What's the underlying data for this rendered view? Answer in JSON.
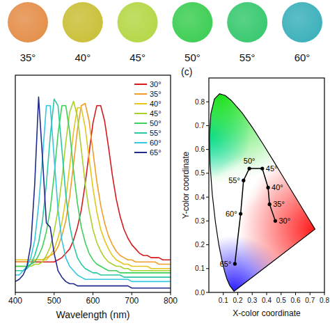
{
  "swatches": [
    {
      "label": "35°",
      "color": "#e5914e"
    },
    {
      "label": "40°",
      "color": "#cbc13d"
    },
    {
      "label": "45°",
      "color": "#b6d84a"
    },
    {
      "label": "50°",
      "color": "#41cf57"
    },
    {
      "label": "55°",
      "color": "#3cca72"
    },
    {
      "label": "60°",
      "color": "#40b2bc"
    }
  ],
  "chart_data": [
    {
      "type": "line",
      "xlabel": "Wavelength (nm)",
      "x": [
        400,
        410,
        420,
        430,
        440,
        450,
        460,
        470,
        480,
        490,
        500,
        510,
        520,
        530,
        540,
        550,
        560,
        570,
        580,
        590,
        600,
        610,
        620,
        630,
        640,
        650,
        660,
        670,
        680,
        690,
        700,
        710,
        720,
        730,
        740,
        750,
        760,
        770,
        780,
        790,
        800
      ],
      "xlim": [
        400,
        800
      ],
      "xticks": [
        400,
        500,
        600,
        700,
        800
      ],
      "ylim": [
        0,
        1
      ],
      "tick_labels": "x",
      "legend": "upper right",
      "series": [
        {
          "name": "30°",
          "color": "#d7191c",
          "values": [
            0.14,
            0.14,
            0.14,
            0.14,
            0.14,
            0.14,
            0.14,
            0.14,
            0.14,
            0.14,
            0.14,
            0.15,
            0.16,
            0.18,
            0.2,
            0.24,
            0.3,
            0.38,
            0.5,
            0.64,
            0.78,
            0.86,
            0.86,
            0.79,
            0.67,
            0.54,
            0.43,
            0.35,
            0.29,
            0.25,
            0.22,
            0.2,
            0.18,
            0.17,
            0.17,
            0.16,
            0.16,
            0.16,
            0.15,
            0.15,
            0.15
          ]
        },
        {
          "name": "35°",
          "color": "#f39c2a",
          "values": [
            0.14,
            0.14,
            0.14,
            0.14,
            0.14,
            0.15,
            0.15,
            0.15,
            0.16,
            0.17,
            0.18,
            0.21,
            0.26,
            0.33,
            0.44,
            0.59,
            0.75,
            0.86,
            0.87,
            0.79,
            0.65,
            0.51,
            0.4,
            0.32,
            0.26,
            0.22,
            0.19,
            0.17,
            0.16,
            0.15,
            0.15,
            0.14,
            0.14,
            0.14,
            0.14,
            0.14,
            0.14,
            0.13,
            0.13,
            0.13,
            0.13
          ]
        },
        {
          "name": "40°",
          "color": "#e3c51b",
          "values": [
            0.15,
            0.15,
            0.15,
            0.15,
            0.15,
            0.15,
            0.15,
            0.15,
            0.15,
            0.17,
            0.2,
            0.25,
            0.32,
            0.43,
            0.58,
            0.74,
            0.85,
            0.85,
            0.76,
            0.62,
            0.48,
            0.37,
            0.29,
            0.24,
            0.2,
            0.17,
            0.15,
            0.14,
            0.13,
            0.13,
            0.12,
            0.12,
            0.12,
            0.12,
            0.12,
            0.11,
            0.11,
            0.11,
            0.11,
            0.11,
            0.11
          ]
        },
        {
          "name": "45°",
          "color": "#a8d12a",
          "values": [
            0.12,
            0.12,
            0.12,
            0.12,
            0.12,
            0.13,
            0.13,
            0.14,
            0.17,
            0.21,
            0.28,
            0.38,
            0.52,
            0.69,
            0.83,
            0.88,
            0.81,
            0.66,
            0.5,
            0.38,
            0.29,
            0.23,
            0.19,
            0.16,
            0.14,
            0.13,
            0.12,
            0.12,
            0.11,
            0.11,
            0.1,
            0.1,
            0.1,
            0.1,
            0.1,
            0.1,
            0.1,
            0.1,
            0.1,
            0.1,
            0.1
          ]
        },
        {
          "name": "50°",
          "color": "#3fcf5a",
          "values": [
            0.12,
            0.12,
            0.12,
            0.12,
            0.13,
            0.14,
            0.17,
            0.21,
            0.28,
            0.38,
            0.54,
            0.73,
            0.86,
            0.86,
            0.74,
            0.56,
            0.41,
            0.3,
            0.23,
            0.18,
            0.15,
            0.13,
            0.12,
            0.11,
            0.1,
            0.1,
            0.1,
            0.09,
            0.09,
            0.09,
            0.09,
            0.09,
            0.09,
            0.09,
            0.09,
            0.09,
            0.09,
            0.09,
            0.09,
            0.09,
            0.09
          ]
        },
        {
          "name": "55°",
          "color": "#28c9a0",
          "values": [
            0.1,
            0.1,
            0.1,
            0.11,
            0.13,
            0.17,
            0.23,
            0.33,
            0.5,
            0.72,
            0.89,
            0.86,
            0.66,
            0.45,
            0.31,
            0.22,
            0.16,
            0.13,
            0.11,
            0.1,
            0.09,
            0.09,
            0.08,
            0.08,
            0.08,
            0.08,
            0.08,
            0.08,
            0.07,
            0.07,
            0.07,
            0.07,
            0.07,
            0.07,
            0.07,
            0.07,
            0.07,
            0.07,
            0.07,
            0.07,
            0.07
          ]
        },
        {
          "name": "60°",
          "color": "#35c6e0",
          "values": [
            0.08,
            0.08,
            0.1,
            0.12,
            0.16,
            0.24,
            0.4,
            0.62,
            0.86,
            0.86,
            0.62,
            0.38,
            0.24,
            0.16,
            0.12,
            0.1,
            0.08,
            0.07,
            0.06,
            0.06,
            0.06,
            0.06,
            0.06,
            0.06,
            0.06,
            0.06,
            0.06,
            0.06,
            0.06,
            0.06,
            0.05,
            0.05,
            0.05,
            0.05,
            0.05,
            0.05,
            0.05,
            0.05,
            0.05,
            0.05,
            0.05
          ]
        },
        {
          "name": "65°",
          "color": "#1f2a8c",
          "values": [
            0.05,
            0.06,
            0.08,
            0.12,
            0.22,
            0.5,
            0.9,
            0.62,
            0.32,
            0.3,
            0.18,
            0.1,
            0.07,
            0.05,
            0.04,
            0.04,
            0.03,
            0.03,
            0.03,
            0.03,
            0.03,
            0.03,
            0.03,
            0.03,
            0.03,
            0.03,
            0.03,
            0.03,
            0.03,
            0.03,
            0.02,
            0.02,
            0.02,
            0.02,
            0.02,
            0.02,
            0.02,
            0.02,
            0.02,
            0.02,
            0.02
          ]
        }
      ]
    },
    {
      "type": "line",
      "panel_label": "(c)",
      "xlabel": "X-color coordinate",
      "ylabel": "Y-color coordinate",
      "xlim": [
        0,
        0.8
      ],
      "ylim": [
        0,
        0.9
      ],
      "xticks": [
        0.1,
        0.2,
        0.3,
        0.4,
        0.5,
        0.6,
        0.7,
        0.8
      ],
      "yticks": [
        {
          "value": 0,
          "label": "0.0"
        },
        0.1,
        0.2,
        0.3,
        0.4,
        0.5,
        0.6,
        0.7,
        0.8
      ],
      "locus": {
        "x": [
          0.1741,
          0.144,
          0.1241,
          0.1096,
          0.0913,
          0.0687,
          0.0454,
          0.0235,
          0.0082,
          0.0039,
          0.0139,
          0.0389,
          0.0743,
          0.1142,
          0.1547,
          0.2296,
          0.3016,
          0.3731,
          0.4441,
          0.5125,
          0.627,
          0.6915,
          0.7347
        ],
        "y": [
          0.005,
          0.0297,
          0.0578,
          0.0868,
          0.1327,
          0.2007,
          0.295,
          0.4127,
          0.5384,
          0.6548,
          0.7502,
          0.812,
          0.8338,
          0.8262,
          0.8059,
          0.7543,
          0.6923,
          0.6245,
          0.5547,
          0.4866,
          0.3725,
          0.3083,
          0.2653
        ]
      },
      "series": [
        {
          "color": "#000000",
          "marker": "circle",
          "x": [
            0.46,
            0.42,
            0.41,
            0.37,
            0.28,
            0.24,
            0.22,
            0.18
          ],
          "values": [
            0.3,
            0.37,
            0.44,
            0.52,
            0.52,
            0.47,
            0.33,
            0.12
          ],
          "labels": [
            "30°",
            "35°",
            "40°",
            "45°",
            "50°",
            "55°",
            "60°",
            "65°"
          ]
        }
      ]
    }
  ]
}
